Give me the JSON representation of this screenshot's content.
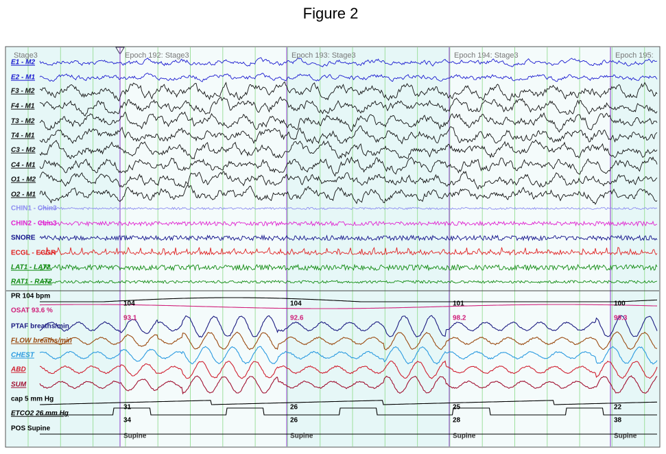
{
  "title": "Figure 2",
  "header": {
    "stage": "Stage3",
    "epochs": [
      "Epoch 192: Stage3",
      "Epoch 193: Stage3",
      "Epoch 194: Stage3",
      "Epoch 195:"
    ]
  },
  "channels": [
    {
      "label": "E1 - M2",
      "color": "#1a1ad0"
    },
    {
      "label": "E2 - M1",
      "color": "#1a1ad0"
    },
    {
      "label": "F3 - M2",
      "color": "#111111"
    },
    {
      "label": "F4 - M1",
      "color": "#111111"
    },
    {
      "label": "T3 - M2",
      "color": "#111111"
    },
    {
      "label": "T4 - M1",
      "color": "#111111"
    },
    {
      "label": "C3 - M2",
      "color": "#111111"
    },
    {
      "label": "C4 - M1",
      "color": "#111111"
    },
    {
      "label": "O1 - M2",
      "color": "#111111"
    },
    {
      "label": "O2 - M1",
      "color": "#111111"
    },
    {
      "label": "CHIN1 - Chin3",
      "color": "#8c8cf0"
    },
    {
      "label": "CHIN2 - Chin3",
      "color": "#e020d0"
    },
    {
      "label": "SNORE",
      "color": "#10108a"
    },
    {
      "label": "ECGL - ECGR",
      "color": "#e02020"
    },
    {
      "label": "LAT1 - LAT2",
      "color": "#108a10"
    },
    {
      "label": "RAT1 - RAT2",
      "color": "#108a10"
    },
    {
      "label": "PR 104 bpm",
      "color": "#000000"
    },
    {
      "label": "OSAT 93.6 %",
      "color": "#d0207a"
    },
    {
      "label": "PTAF breaths/min",
      "color": "#1a1a80"
    },
    {
      "label": "FLOW breaths/min",
      "color": "#9a4a10"
    },
    {
      "label": "CHEST",
      "color": "#2a9ae0"
    },
    {
      "label": "ABD",
      "color": "#d02030"
    },
    {
      "label": "SUM",
      "color": "#a01030"
    },
    {
      "label": "cap  5 mm Hg",
      "color": "#000000"
    },
    {
      "label": "ETCO2   26 mm Hg",
      "color": "#000000"
    },
    {
      "label": "POS Supine",
      "color": "#000000"
    }
  ],
  "markers": [
    {
      "pr": "104",
      "osat": "93.1",
      "cap": "31",
      "etco2": "34",
      "pos": "Supine"
    },
    {
      "pr": "104",
      "osat": "92.6",
      "cap": "26",
      "etco2": "26",
      "pos": "Supine"
    },
    {
      "pr": "101",
      "osat": "98.2",
      "cap": "25",
      "etco2": "28",
      "pos": "Supine"
    },
    {
      "pr": "100",
      "osat": "99.3",
      "cap": "22",
      "etco2": "38",
      "pos": "Supine"
    }
  ]
}
